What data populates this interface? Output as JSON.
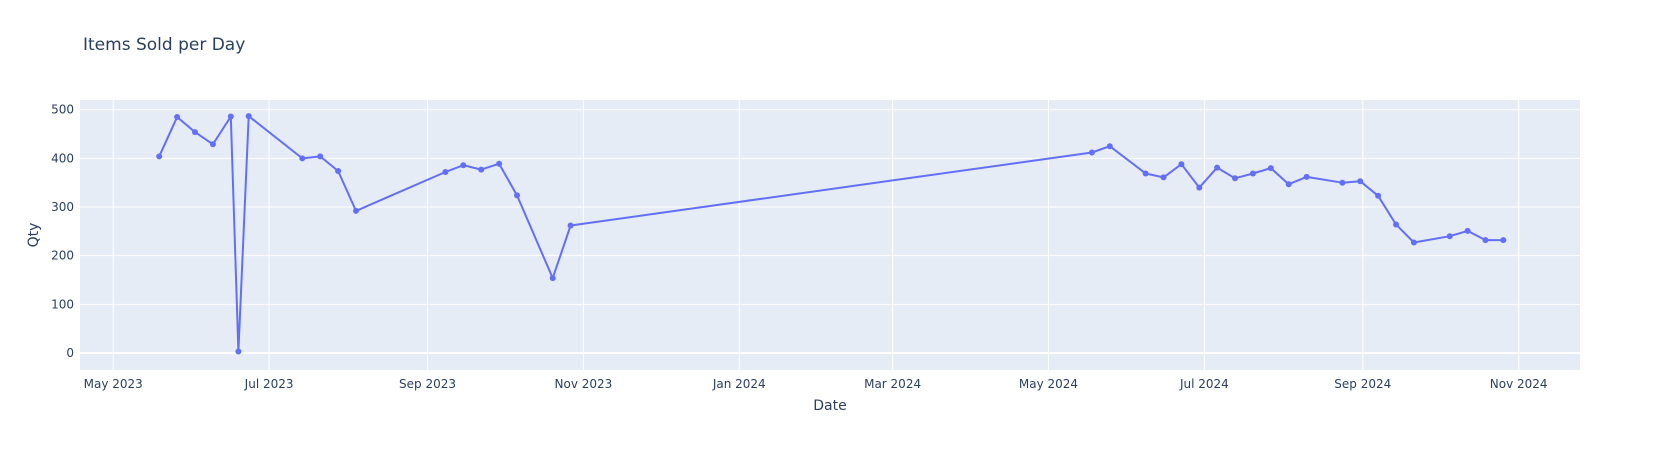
{
  "chart_data": {
    "type": "line",
    "title": "Items Sold per Day",
    "xlabel": "Date",
    "ylabel": "Qty",
    "xlim": [
      "2023-04-18",
      "2024-11-25"
    ],
    "ylim": [
      -35,
      520
    ],
    "x_ticks": [
      {
        "date": "2023-05-01",
        "label": "May 2023"
      },
      {
        "date": "2023-07-01",
        "label": "Jul 2023"
      },
      {
        "date": "2023-09-01",
        "label": "Sep 2023"
      },
      {
        "date": "2023-11-01",
        "label": "Nov 2023"
      },
      {
        "date": "2024-01-01",
        "label": "Jan 2024"
      },
      {
        "date": "2024-03-01",
        "label": "Mar 2024"
      },
      {
        "date": "2024-05-01",
        "label": "May 2024"
      },
      {
        "date": "2024-07-01",
        "label": "Jul 2024"
      },
      {
        "date": "2024-09-01",
        "label": "Sep 2024"
      },
      {
        "date": "2024-11-01",
        "label": "Nov 2024"
      }
    ],
    "y_ticks": [
      0,
      100,
      200,
      300,
      400,
      500
    ],
    "grid": true,
    "colors": {
      "series": "#636efa",
      "plot_bg": "#e5ecf6",
      "grid": "#ffffff",
      "text": "#2a3f5f"
    },
    "series": [
      {
        "points": [
          {
            "x": "2023-05-19",
            "y": 404
          },
          {
            "x": "2023-05-26",
            "y": 485
          },
          {
            "x": "2023-06-02",
            "y": 454
          },
          {
            "x": "2023-06-09",
            "y": 429
          },
          {
            "x": "2023-06-16",
            "y": 486
          },
          {
            "x": "2023-06-19",
            "y": 3
          },
          {
            "x": "2023-06-23",
            "y": 487
          },
          {
            "x": "2023-07-14",
            "y": 400
          },
          {
            "x": "2023-07-21",
            "y": 404
          },
          {
            "x": "2023-07-28",
            "y": 374
          },
          {
            "x": "2023-08-04",
            "y": 292
          },
          {
            "x": "2023-09-08",
            "y": 372
          },
          {
            "x": "2023-09-15",
            "y": 386
          },
          {
            "x": "2023-09-22",
            "y": 377
          },
          {
            "x": "2023-09-29",
            "y": 389
          },
          {
            "x": "2023-10-06",
            "y": 324
          },
          {
            "x": "2023-10-20",
            "y": 154
          },
          {
            "x": "2023-10-27",
            "y": 262
          },
          {
            "x": "2024-05-18",
            "y": 412
          },
          {
            "x": "2024-05-25",
            "y": 425
          },
          {
            "x": "2024-06-08",
            "y": 369
          },
          {
            "x": "2024-06-15",
            "y": 361
          },
          {
            "x": "2024-06-22",
            "y": 388
          },
          {
            "x": "2024-06-29",
            "y": 340
          },
          {
            "x": "2024-07-06",
            "y": 381
          },
          {
            "x": "2024-07-13",
            "y": 359
          },
          {
            "x": "2024-07-20",
            "y": 369
          },
          {
            "x": "2024-07-27",
            "y": 380
          },
          {
            "x": "2024-08-03",
            "y": 347
          },
          {
            "x": "2024-08-10",
            "y": 362
          },
          {
            "x": "2024-08-24",
            "y": 350
          },
          {
            "x": "2024-08-31",
            "y": 353
          },
          {
            "x": "2024-09-07",
            "y": 323
          },
          {
            "x": "2024-09-14",
            "y": 264
          },
          {
            "x": "2024-09-21",
            "y": 227
          },
          {
            "x": "2024-10-05",
            "y": 240
          },
          {
            "x": "2024-10-12",
            "y": 251
          },
          {
            "x": "2024-10-19",
            "y": 232
          },
          {
            "x": "2024-10-26",
            "y": 232
          }
        ]
      }
    ]
  }
}
